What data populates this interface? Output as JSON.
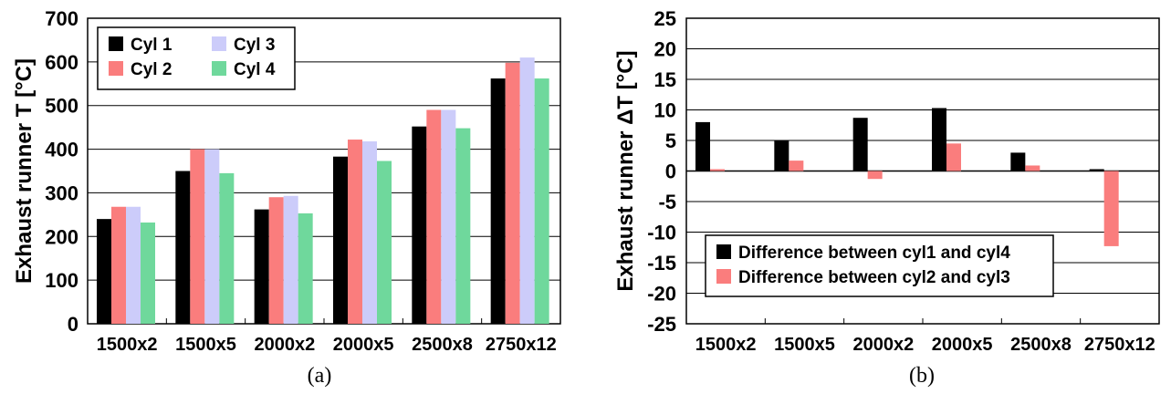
{
  "chart_data": [
    {
      "type": "bar",
      "caption": "(a)",
      "ylabel": "Exhaust runner T [°C]",
      "ylim": [
        0,
        700
      ],
      "ytick_labels": [
        "0",
        "100",
        "200",
        "300",
        "400",
        "500",
        "600",
        "700"
      ],
      "categories": [
        "1500x2",
        "1500x5",
        "2000x2",
        "2000x5",
        "2500x8",
        "2750x12"
      ],
      "grid": true,
      "legend_position": "top-left",
      "series": [
        {
          "name": "Cyl 1",
          "color": "#000000",
          "values": [
            240,
            350,
            262,
            383,
            452,
            562
          ]
        },
        {
          "name": "Cyl 2",
          "color": "#fa7d7d",
          "values": [
            268,
            400,
            290,
            422,
            490,
            598
          ]
        },
        {
          "name": "Cyl 3",
          "color": "#ccccfa",
          "values": [
            268,
            400,
            293,
            418,
            490,
            610
          ]
        },
        {
          "name": "Cyl 4",
          "color": "#6fd89c",
          "values": [
            232,
            345,
            253,
            373,
            448,
            562
          ]
        }
      ]
    },
    {
      "type": "bar",
      "caption": "(b)",
      "ylabel": "Exhaust runner ΔT [°C]",
      "ylim": [
        -25,
        25
      ],
      "ytick_labels": [
        "-25",
        "-20",
        "-15",
        "-10",
        "-5",
        "0",
        "5",
        "10",
        "15",
        "20",
        "25"
      ],
      "categories": [
        "1500x2",
        "1500x5",
        "2000x2",
        "2000x5",
        "2500x8",
        "2750x12"
      ],
      "grid": true,
      "legend_position": "bottom-left",
      "series": [
        {
          "name": "Difference between cyl1 and cyl4",
          "color": "#000000",
          "values": [
            8,
            5,
            8.7,
            10.3,
            3,
            0.3
          ]
        },
        {
          "name": "Difference between cyl2 and cyl3",
          "color": "#fa7d7d",
          "values": [
            0.3,
            1.7,
            -1.3,
            4.5,
            0.9,
            -12.3
          ]
        }
      ]
    }
  ]
}
